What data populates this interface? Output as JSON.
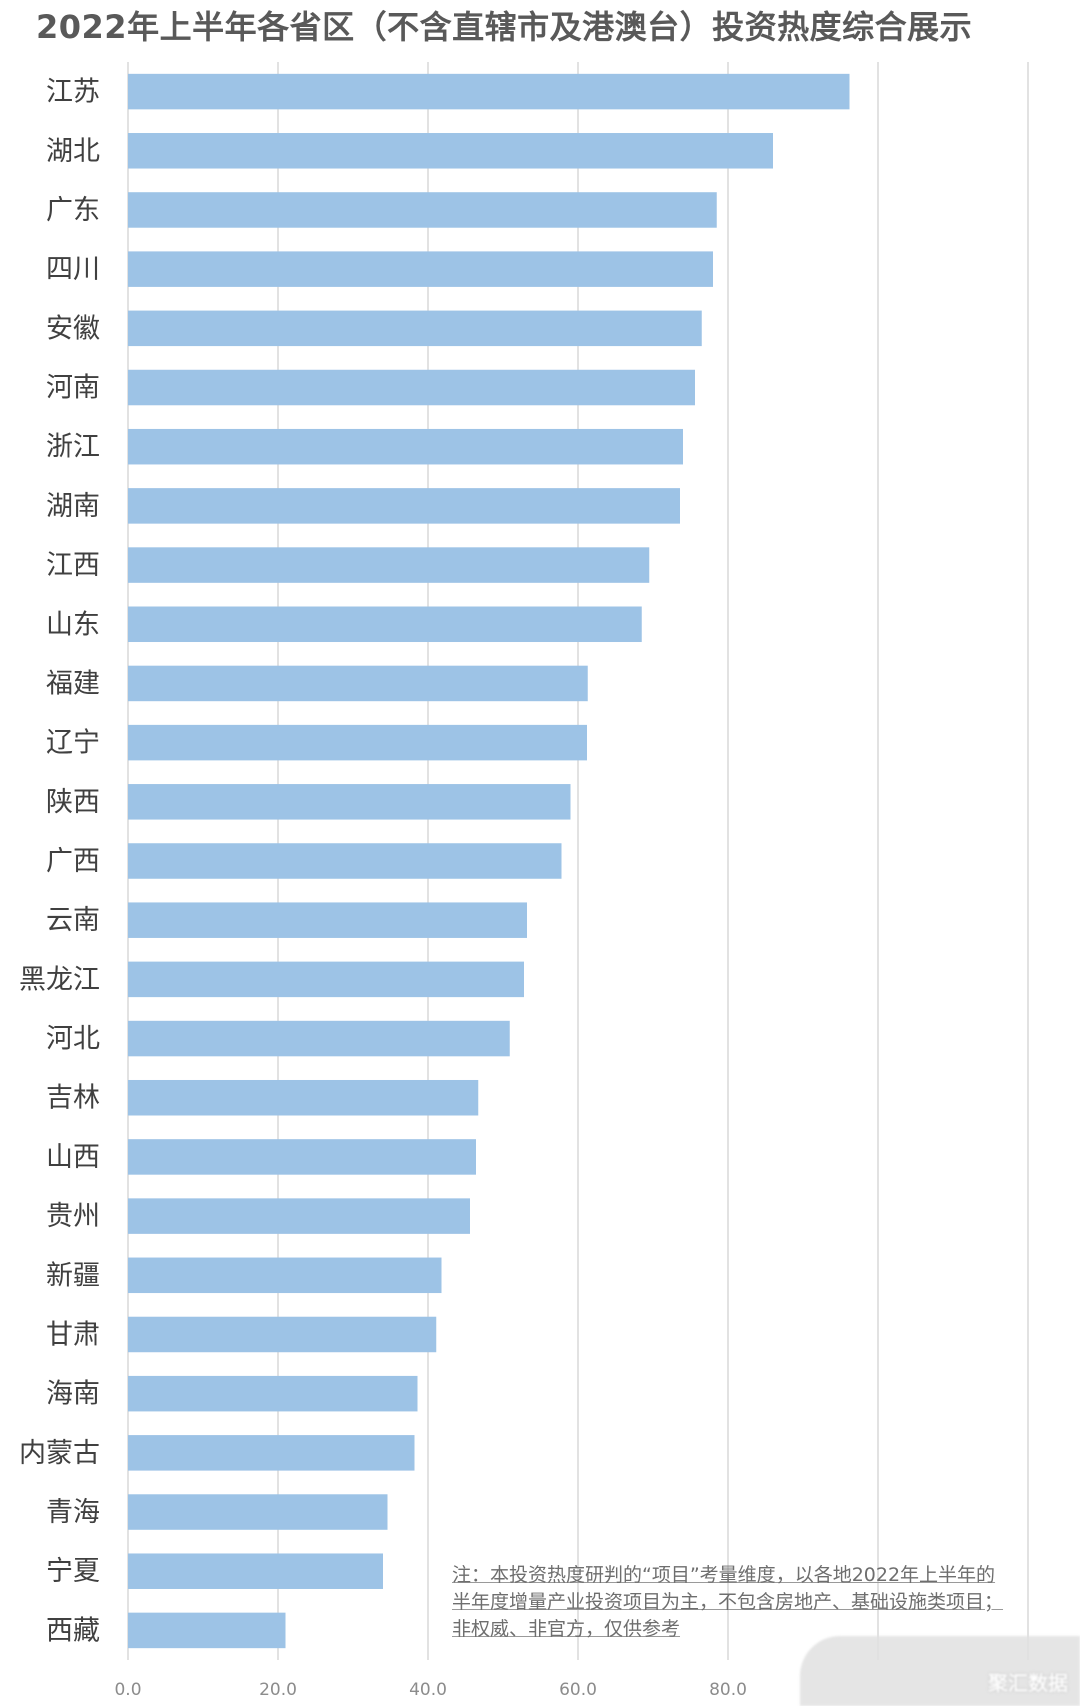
{
  "chart_data": {
    "type": "bar",
    "orientation": "horizontal",
    "title": "2022年上半年各省区（不含直辖市及港澳台）投资热度综合展示",
    "categories": [
      "江苏",
      "湖北",
      "广东",
      "四川",
      "安徽",
      "河南",
      "浙江",
      "湖南",
      "江西",
      "山东",
      "福建",
      "辽宁",
      "陕西",
      "广西",
      "云南",
      "黑龙江",
      "河北",
      "吉林",
      "山西",
      "贵州",
      "新疆",
      "甘肃",
      "海南",
      "内蒙古",
      "青海",
      "宁夏",
      "西藏"
    ],
    "values": [
      96.2,
      86.0,
      78.5,
      78.0,
      76.5,
      75.6,
      74.0,
      73.6,
      69.5,
      68.5,
      61.3,
      61.2,
      59.0,
      57.8,
      53.2,
      52.8,
      50.9,
      46.7,
      46.4,
      45.6,
      41.8,
      41.1,
      38.6,
      38.2,
      34.6,
      34.0,
      21.0
    ],
    "xlim": [
      0,
      120
    ],
    "xticks": [
      "0.0",
      "20.0",
      "40.0",
      "60.0",
      "80.0"
    ],
    "grid": true,
    "bar_color": "#9dc3e6",
    "grid_color": "#d9d9d9"
  },
  "note": "注：本投资热度研判的“项目”考量维度，以各地2022年上半年的半年度增量产业投资项目为主，不包含房地产、基础设施类项目；非权威、非官方，仅供参考",
  "watermark": "聚汇数据"
}
